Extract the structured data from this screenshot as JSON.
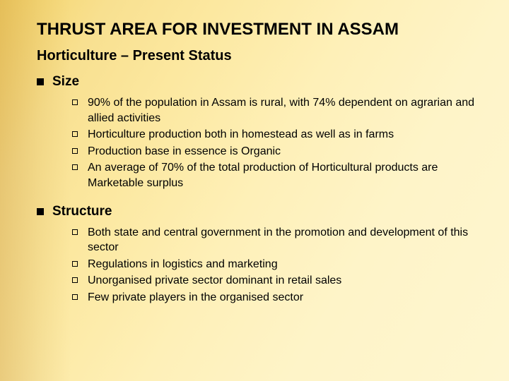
{
  "title": "THRUST AREA FOR INVESTMENT IN ASSAM",
  "subtitle": "Horticulture – Present Status",
  "sections": [
    {
      "label": "Size",
      "items": [
        "90% of the population in Assam is rural, with 74% dependent on agrarian and allied activities",
        "Horticulture production both in homestead as well as in farms",
        "Production base in essence is Organic",
        "An average of 70% of the total production of Horticultural products are Marketable surplus"
      ]
    },
    {
      "label": "Structure",
      "items": [
        "Both state and central government in the promotion and development of this sector",
        "Regulations in logistics and marketing",
        "Unorganised private sector dominant in retail sales",
        "Few private players in the organised sector"
      ]
    }
  ],
  "colors": {
    "bg_gradient_start": "#f5d468",
    "bg_gradient_end": "#fef6d0",
    "text": "#000000"
  },
  "typography": {
    "title_fontsize": 24,
    "subtitle_fontsize": 20,
    "section_fontsize": 19,
    "item_fontsize": 16,
    "font_family": "Arial"
  }
}
